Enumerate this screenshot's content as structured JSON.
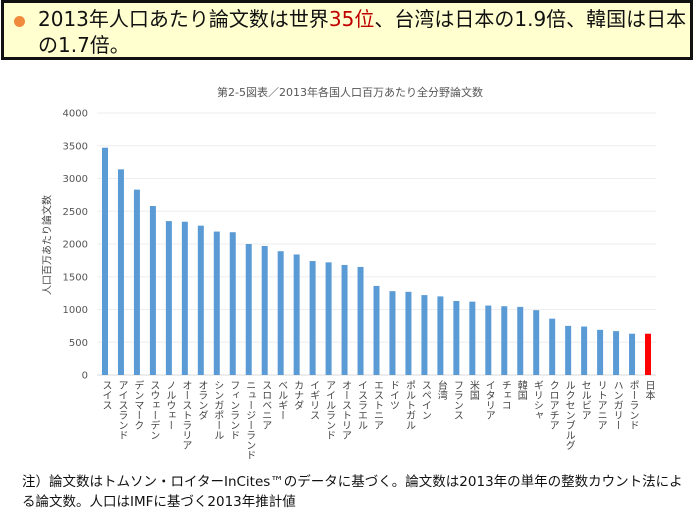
{
  "header": {
    "bullet_color": "#f08a3c",
    "text_before": "2013年人口あたり論文数は世界",
    "highlight": "35位",
    "text_after": "、台湾は日本の1.9倍、韓国は日本の1.7倍。",
    "highlight_color": "#c00000"
  },
  "chart_data": {
    "type": "bar",
    "title": "第2-5図表／2013年各国人口百万あたり全分野論文数",
    "ylabel": "人口百万あたり論文数",
    "xlabel": "",
    "ylim": [
      0,
      4000
    ],
    "yticks": [
      0,
      500,
      1000,
      1500,
      2000,
      2500,
      3000,
      3500,
      4000
    ],
    "grid": true,
    "bar_color": "#5b9bd5",
    "highlight_color": "#ff0000",
    "highlight_category": "日本",
    "categories": [
      "スイス",
      "アイスランド",
      "デンマーク",
      "スウェーデン",
      "ノルウェー",
      "オーストラリア",
      "オランダ",
      "シンガポール",
      "フィンランド",
      "ニュージーランド",
      "スロベニア",
      "ベルギー",
      "カナダ",
      "イギリス",
      "アイルランド",
      "オーストリア",
      "イスラエル",
      "エストニア",
      "ドイツ",
      "ポルトガル",
      "スペイン",
      "台湾",
      "フランス",
      "米国",
      "イタリア",
      "チェコ",
      "韓国",
      "ギリシャ",
      "クロアチア",
      "ルクセンブルグ",
      "セルビア",
      "リトアニア",
      "ハンガリー",
      "ポーランド",
      "日本"
    ],
    "values": [
      3470,
      3140,
      2830,
      2580,
      2350,
      2340,
      2280,
      2190,
      2180,
      2000,
      1970,
      1890,
      1840,
      1740,
      1720,
      1680,
      1650,
      1360,
      1280,
      1270,
      1220,
      1200,
      1130,
      1120,
      1060,
      1050,
      1040,
      990,
      860,
      750,
      740,
      690,
      670,
      630,
      630
    ]
  },
  "note": "注）論文数はトムソン・ロイターInCites™のデータに基づく。論文数は2013年の単年の整数カウント法による論文数。人口はIMFに基づく2013年推計値"
}
